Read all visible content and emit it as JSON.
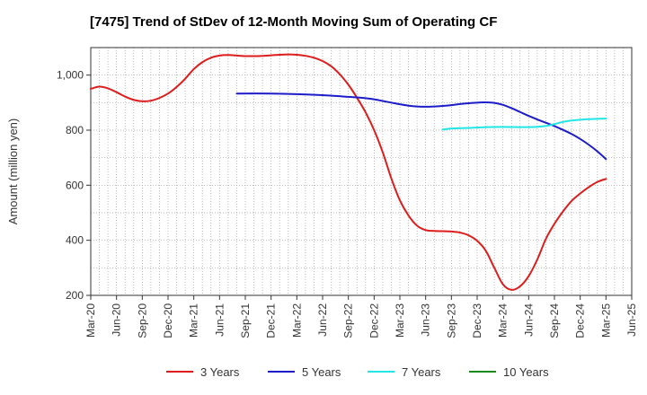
{
  "chart_data": {
    "type": "line",
    "title": "[7475]  Trend of StDev of 12-Month Moving Sum of Operating CF",
    "ylabel": "Amount (million yen)",
    "xlabel": "",
    "ylim": [
      200,
      1100
    ],
    "yticks": [
      200,
      400,
      600,
      800,
      1000
    ],
    "ytick_labels": [
      "200",
      "400",
      "600",
      "800",
      "1,000"
    ],
    "x_start": "Mar-20",
    "xtick_labels": [
      "Mar-20",
      "Jun-20",
      "Sep-20",
      "Dec-20",
      "Mar-21",
      "Jun-21",
      "Sep-21",
      "Dec-21",
      "Mar-22",
      "Jun-22",
      "Sep-22",
      "Dec-22",
      "Mar-23",
      "Jun-23",
      "Sep-23",
      "Dec-23",
      "Mar-24",
      "Jun-24",
      "Sep-24",
      "Dec-24",
      "Mar-25",
      "Jun-25"
    ],
    "grid": true,
    "legend_position": "bottom",
    "series": [
      {
        "name": "3 Years",
        "color": "#dd1c1c",
        "x": [
          "Mar-20",
          "Apr-20",
          "May-20",
          "Jun-20",
          "Jul-20",
          "Aug-20",
          "Sep-20",
          "Oct-20",
          "Nov-20",
          "Dec-20",
          "Jan-21",
          "Feb-21",
          "Mar-21",
          "Apr-21",
          "May-21",
          "Jun-21",
          "Jul-21",
          "Aug-21",
          "Sep-21",
          "Oct-21",
          "Nov-21",
          "Dec-21",
          "Jan-22",
          "Feb-22",
          "Mar-22",
          "Apr-22",
          "May-22",
          "Jun-22",
          "Jul-22",
          "Aug-22",
          "Sep-22",
          "Oct-22",
          "Nov-22",
          "Dec-22",
          "Jan-23",
          "Feb-23",
          "Mar-23",
          "Apr-23",
          "May-23",
          "Jun-23",
          "Jul-23",
          "Aug-23",
          "Sep-23",
          "Oct-23",
          "Nov-23",
          "Dec-23",
          "Jan-24",
          "Feb-24",
          "Mar-24",
          "Apr-24",
          "May-24",
          "Jun-24",
          "Jul-24",
          "Aug-24",
          "Sep-24",
          "Oct-24",
          "Nov-24",
          "Dec-24",
          "Jan-25",
          "Feb-25",
          "Mar-25"
        ],
        "values": [
          950,
          958,
          952,
          938,
          922,
          910,
          905,
          907,
          917,
          933,
          957,
          987,
          1022,
          1047,
          1063,
          1071,
          1073,
          1071,
          1069,
          1069,
          1070,
          1072,
          1074,
          1075,
          1074,
          1070,
          1063,
          1051,
          1032,
          1003,
          965,
          918,
          865,
          800,
          720,
          625,
          545,
          490,
          453,
          437,
          434,
          433,
          432,
          428,
          418,
          398,
          362,
          300,
          240,
          220,
          233,
          270,
          330,
          405,
          460,
          505,
          543,
          570,
          593,
          612,
          623
        ]
      },
      {
        "name": "5 Years",
        "color": "#1c1cc8",
        "x": [
          "Aug-21",
          "Dec-21",
          "Mar-22",
          "Jun-22",
          "Sep-22",
          "Oct-22",
          "Nov-22",
          "Dec-22",
          "Jan-23",
          "Feb-23",
          "Mar-23",
          "Apr-23",
          "May-23",
          "Jun-23",
          "Jul-23",
          "Aug-23",
          "Sep-23",
          "Oct-23",
          "Nov-23",
          "Dec-23",
          "Jan-24",
          "Feb-24",
          "Mar-24",
          "Apr-24",
          "May-24",
          "Jun-24",
          "Jul-24",
          "Aug-24",
          "Sep-24",
          "Oct-24",
          "Nov-24",
          "Dec-24",
          "Jan-25",
          "Feb-25",
          "Mar-25"
        ],
        "values": [
          933,
          933,
          931,
          927,
          921,
          919,
          916,
          912,
          906,
          900,
          894,
          889,
          886,
          885,
          886,
          888,
          891,
          895,
          898,
          900,
          901,
          899,
          892,
          880,
          866,
          852,
          839,
          827,
          815,
          801,
          786,
          768,
          747,
          723,
          695
        ]
      },
      {
        "name": "7 Years",
        "color": "#22e6e6",
        "x": [
          "Aug-23",
          "Sep-23",
          "Nov-23",
          "Jan-24",
          "Mar-24",
          "Jun-24",
          "Aug-24",
          "Sep-24",
          "Oct-24",
          "Nov-24",
          "Dec-24",
          "Jan-25",
          "Feb-25",
          "Mar-25"
        ],
        "values": [
          802,
          806,
          808,
          811,
          812,
          811,
          815,
          822,
          830,
          835,
          838,
          840,
          841,
          842
        ]
      },
      {
        "name": "10 Years",
        "color": "#1a8a1a",
        "x": [],
        "values": []
      }
    ]
  }
}
